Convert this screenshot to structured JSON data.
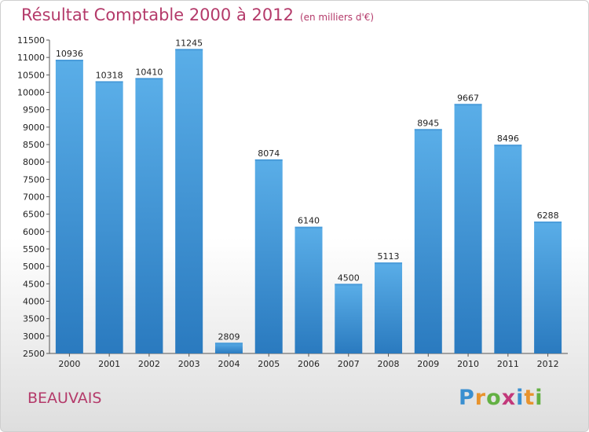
{
  "header": {
    "title": "Résultat Comptable 2000 à 2012",
    "subtitle": "(en milliers d'€)"
  },
  "footer": {
    "city": "BEAUVAIS",
    "logo_letters": [
      {
        "ch": "P",
        "color": "#3a8fd0"
      },
      {
        "ch": "r",
        "color": "#e8932d"
      },
      {
        "ch": "o",
        "color": "#63b043"
      },
      {
        "ch": "x",
        "color": "#c2387a"
      },
      {
        "ch": "i",
        "color": "#3a8fd0"
      },
      {
        "ch": "t",
        "color": "#e8932d"
      },
      {
        "ch": "i",
        "color": "#63b043"
      }
    ]
  },
  "colors": {
    "bar_light": "#5aaee8",
    "bar_dark": "#2a7abf",
    "title": "#b43a6a"
  },
  "chart_data": {
    "type": "bar",
    "title": "Résultat Comptable 2000 à 2012",
    "subtitle": "(en milliers d'€)",
    "categories": [
      "2000",
      "2001",
      "2002",
      "2003",
      "2004",
      "2005",
      "2006",
      "2007",
      "2008",
      "2009",
      "2010",
      "2011",
      "2012"
    ],
    "values": [
      10936,
      10318,
      10410,
      11245,
      2809,
      8074,
      6140,
      4500,
      5113,
      8945,
      9667,
      8496,
      6288
    ],
    "data_labels": [
      "10936",
      "10318",
      "10410",
      "11245",
      "2809",
      "8074",
      "6140",
      "4500",
      "5113",
      "8945",
      "9667",
      "8496",
      "6288"
    ],
    "ylim": [
      2500,
      11500
    ],
    "yticks": [
      2500,
      3000,
      3500,
      4000,
      4500,
      5000,
      5500,
      6000,
      6500,
      7000,
      7500,
      8000,
      8500,
      9000,
      9500,
      10000,
      10500,
      11000,
      11500
    ],
    "grid": false,
    "legend": "none"
  }
}
